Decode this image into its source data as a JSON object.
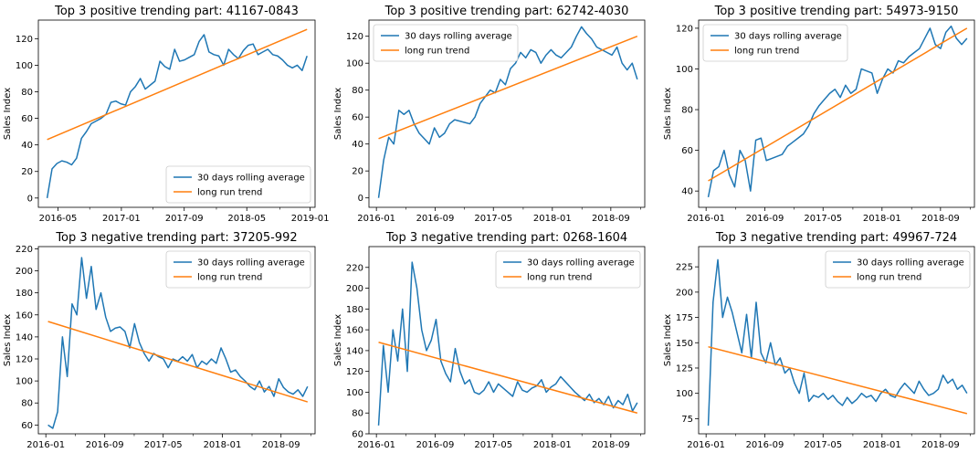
{
  "colors": {
    "rolling": "#1f77b4",
    "trend": "#ff7f0e"
  },
  "chart_data": [
    {
      "type": "line",
      "title": "Top 3 positive trending part: 41167-0843",
      "ylabel": "Sales Index",
      "xlabel": "",
      "x_start": "2016-03-20",
      "x_end": "2018-12-20",
      "xlim": [
        "2016-02-15",
        "2019-01-20"
      ],
      "ylim": [
        -7,
        134
      ],
      "xticks": [
        "2016-05",
        "2017-01",
        "2017-09",
        "2018-05",
        "2019-01"
      ],
      "yticks": [
        0,
        20,
        40,
        60,
        80,
        100,
        120
      ],
      "legend_position": "lower-right",
      "series": [
        {
          "name": "30 days rolling average",
          "values": [
            0,
            22,
            26,
            28,
            27,
            25,
            30,
            45,
            50,
            56,
            58,
            60,
            63,
            72,
            73,
            71,
            70,
            80,
            84,
            90,
            82,
            85,
            88,
            103,
            99,
            97,
            112,
            103,
            104,
            106,
            108,
            118,
            123,
            110,
            108,
            107,
            100,
            112,
            108,
            105,
            111,
            115,
            116,
            108,
            110,
            112,
            108,
            107,
            104,
            100,
            98,
            100,
            96,
            107
          ]
        },
        {
          "name": "long run trend",
          "values": [
            44,
            127
          ]
        }
      ]
    },
    {
      "type": "line",
      "title": "Top 3 positive trending part: 62742-4030",
      "ylabel": "Sales Index",
      "xlabel": "",
      "x_start": "2016-01-10",
      "x_end": "2018-12-20",
      "xlim": [
        "2015-12-01",
        "2019-01-20"
      ],
      "ylim": [
        -7,
        132
      ],
      "xticks": [
        "2016-01",
        "2016-09",
        "2017-05",
        "2018-01",
        "2018-09"
      ],
      "yticks": [
        0,
        20,
        40,
        60,
        80,
        100,
        120
      ],
      "legend_position": "upper-left",
      "series": [
        {
          "name": "30 days rolling average",
          "values": [
            0,
            28,
            45,
            40,
            65,
            62,
            65,
            55,
            48,
            44,
            40,
            52,
            45,
            48,
            55,
            58,
            57,
            56,
            55,
            60,
            70,
            75,
            80,
            78,
            88,
            84,
            96,
            100,
            108,
            104,
            110,
            108,
            100,
            106,
            110,
            106,
            104,
            108,
            112,
            120,
            127,
            122,
            118,
            112,
            110,
            108,
            106,
            112,
            100,
            95,
            100,
            88
          ]
        },
        {
          "name": "long run trend",
          "values": [
            44,
            120
          ]
        }
      ]
    },
    {
      "type": "line",
      "title": "Top 3 positive trending part: 54973-9150",
      "ylabel": "Sales Index",
      "xlabel": "",
      "x_start": "2016-01-10",
      "x_end": "2018-12-20",
      "xlim": [
        "2015-12-01",
        "2019-01-20"
      ],
      "ylim": [
        32,
        124
      ],
      "xticks": [
        "2016-01",
        "2016-09",
        "2017-05",
        "2018-01",
        "2018-09"
      ],
      "yticks": [
        40,
        60,
        80,
        100,
        120
      ],
      "legend_position": "upper-left",
      "series": [
        {
          "name": "30 days rolling average",
          "values": [
            37,
            50,
            52,
            60,
            48,
            42,
            60,
            55,
            40,
            65,
            66,
            55,
            56,
            57,
            58,
            62,
            64,
            66,
            68,
            72,
            78,
            82,
            85,
            88,
            90,
            86,
            92,
            88,
            90,
            100,
            99,
            98,
            88,
            95,
            100,
            98,
            104,
            103,
            106,
            108,
            110,
            115,
            120,
            112,
            110,
            118,
            121,
            115,
            112,
            115
          ]
        },
        {
          "name": "long run trend",
          "values": [
            45,
            120
          ]
        }
      ]
    },
    {
      "type": "line",
      "title": "Top 3 negative trending part: 37205-992",
      "ylabel": "Sales Index",
      "xlabel": "",
      "x_start": "2016-01-10",
      "x_end": "2018-12-20",
      "xlim": [
        "2015-12-01",
        "2019-01-20"
      ],
      "ylim": [
        52,
        222
      ],
      "xticks": [
        "2016-01",
        "2016-09",
        "2017-05",
        "2018-01",
        "2018-09"
      ],
      "yticks": [
        60,
        80,
        100,
        120,
        140,
        160,
        180,
        200,
        220
      ],
      "legend_position": "upper-right",
      "series": [
        {
          "name": "30 days rolling average",
          "values": [
            60,
            57,
            72,
            140,
            104,
            170,
            160,
            212,
            175,
            204,
            165,
            180,
            158,
            145,
            148,
            149,
            145,
            130,
            152,
            135,
            125,
            118,
            125,
            122,
            120,
            112,
            120,
            118,
            122,
            118,
            124,
            112,
            118,
            115,
            120,
            116,
            130,
            120,
            108,
            110,
            104,
            100,
            95,
            92,
            100,
            90,
            95,
            86,
            102,
            94,
            90,
            88,
            92,
            86,
            95
          ]
        },
        {
          "name": "long run trend",
          "values": [
            154,
            81
          ]
        }
      ]
    },
    {
      "type": "line",
      "title": "Top 3 negative trending part: 0268-1604",
      "ylabel": "Sales Index",
      "xlabel": "",
      "x_start": "2016-01-10",
      "x_end": "2018-12-20",
      "xlim": [
        "2015-12-01",
        "2019-01-20"
      ],
      "ylim": [
        60,
        240
      ],
      "xticks": [
        "2016-01",
        "2016-09",
        "2017-05",
        "2018-01",
        "2018-09"
      ],
      "yticks": [
        60,
        80,
        100,
        120,
        140,
        160,
        180,
        200,
        220
      ],
      "legend_position": "upper-right",
      "series": [
        {
          "name": "30 days rolling average",
          "values": [
            68,
            145,
            100,
            160,
            130,
            180,
            120,
            225,
            200,
            160,
            140,
            150,
            170,
            130,
            118,
            110,
            142,
            120,
            108,
            112,
            100,
            98,
            102,
            110,
            100,
            108,
            104,
            100,
            96,
            110,
            102,
            100,
            104,
            106,
            112,
            100,
            105,
            108,
            115,
            110,
            105,
            100,
            96,
            92,
            98,
            90,
            94,
            88,
            96,
            85,
            92,
            88,
            98,
            82,
            90
          ]
        },
        {
          "name": "long run trend",
          "values": [
            148,
            80
          ]
        }
      ]
    },
    {
      "type": "line",
      "title": "Top 3 negative trending part: 49967-724",
      "ylabel": "Sales Index",
      "xlabel": "",
      "x_start": "2016-01-10",
      "x_end": "2018-12-20",
      "xlim": [
        "2015-12-01",
        "2019-01-20"
      ],
      "ylim": [
        60,
        245
      ],
      "xticks": [
        "2016-01",
        "2016-09",
        "2017-05",
        "2018-01",
        "2018-09"
      ],
      "yticks": [
        75,
        100,
        125,
        150,
        175,
        200,
        225
      ],
      "legend_position": "upper-right",
      "series": [
        {
          "name": "30 days rolling average",
          "values": [
            68,
            190,
            232,
            175,
            195,
            180,
            160,
            140,
            178,
            135,
            190,
            140,
            130,
            150,
            128,
            135,
            120,
            125,
            110,
            100,
            120,
            92,
            98,
            96,
            100,
            94,
            98,
            92,
            88,
            96,
            90,
            94,
            100,
            96,
            98,
            92,
            100,
            104,
            98,
            96,
            104,
            110,
            105,
            100,
            112,
            104,
            98,
            100,
            104,
            118,
            110,
            114,
            104,
            108,
            100
          ]
        },
        {
          "name": "long run trend",
          "values": [
            146,
            80
          ]
        }
      ]
    }
  ]
}
